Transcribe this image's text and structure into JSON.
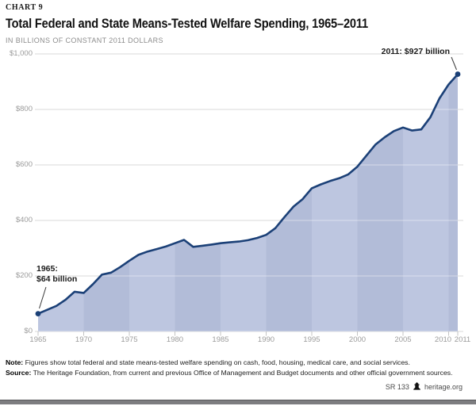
{
  "header": {
    "chart_label": "CHART 9",
    "title": "Total Federal and State Means-Tested Welfare Spending, 1965–2011",
    "subtitle": "IN BILLIONS OF CONSTANT 2011 DOLLARS"
  },
  "chart_data": {
    "type": "area",
    "title": "Total Federal and State Means-Tested Welfare Spending, 1965–2011",
    "xlabel": "",
    "ylabel": "IN BILLIONS OF CONSTANT 2011 DOLLARS",
    "xlim": [
      1965,
      2011
    ],
    "ylim": [
      0,
      1000
    ],
    "grid": true,
    "x": [
      1965,
      1966,
      1967,
      1968,
      1969,
      1970,
      1971,
      1972,
      1973,
      1974,
      1975,
      1976,
      1977,
      1978,
      1979,
      1980,
      1981,
      1982,
      1983,
      1984,
      1985,
      1986,
      1987,
      1988,
      1989,
      1990,
      1991,
      1992,
      1993,
      1994,
      1995,
      1996,
      1997,
      1998,
      1999,
      2000,
      2001,
      2002,
      2003,
      2004,
      2005,
      2006,
      2007,
      2008,
      2009,
      2010,
      2011
    ],
    "series": [
      {
        "name": "Total means-tested welfare spending (billions of constant 2011 dollars)",
        "values": [
          64,
          78,
          92,
          114,
          143,
          139,
          170,
          205,
          212,
          232,
          255,
          276,
          288,
          297,
          306,
          318,
          330,
          305,
          309,
          313,
          318,
          321,
          324,
          329,
          337,
          348,
          372,
          412,
          450,
          477,
          516,
          530,
          542,
          552,
          566,
          594,
          634,
          674,
          700,
          722,
          735,
          724,
          728,
          772,
          840,
          890,
          927
        ]
      }
    ],
    "y_tick_values": [
      0,
      200,
      400,
      600,
      800,
      1000
    ],
    "y_tick_labels": [
      "$0",
      "$200",
      "$400",
      "$600",
      "$800",
      "$1,000"
    ],
    "x_tick_years": [
      1965,
      1970,
      1975,
      1980,
      1985,
      1990,
      1995,
      2000,
      2005,
      2010,
      2011
    ],
    "x_tick_labels": [
      "1965",
      "1970",
      "1975",
      "1980",
      "1985",
      "1990",
      "1995",
      "2000",
      "2005",
      "2010",
      "2011"
    ]
  },
  "annotations": {
    "start": {
      "line1": "1965:",
      "line2": "$64 billion"
    },
    "end": {
      "label": "2011: $927 billion"
    }
  },
  "footer": {
    "note_label": "Note:",
    "note_text": " Figures show total federal and state means-tested welfare spending on cash, food, housing, medical care, and social services.",
    "source_label": "Source:",
    "source_text": " The Heritage Foundation, from current and previous Office of Management and Budget documents and other official government sources.",
    "report_id": "SR 133",
    "site": "heritage.org"
  },
  "colors": {
    "line": "#1b4077",
    "band_light": "#bdc6e0",
    "band_dark": "#b2bcd8",
    "gridline": "#dadada",
    "grid_over_fill": "rgba(255,255,255,0.45)",
    "tick": "#c4c4c4",
    "leader": "#3a3a3a"
  }
}
